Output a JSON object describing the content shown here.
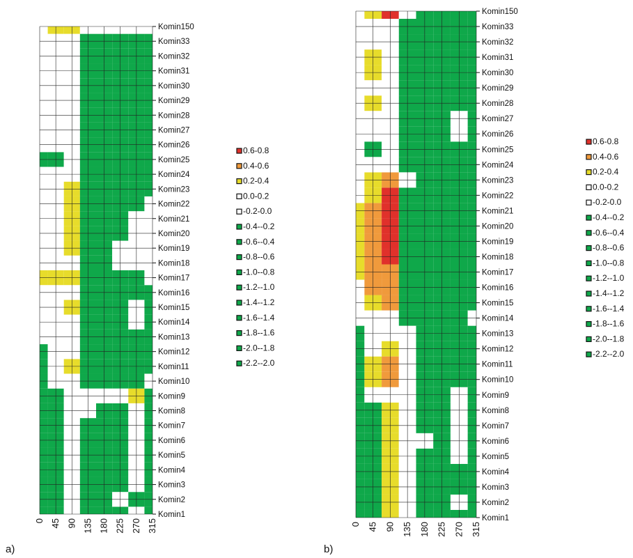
{
  "colors": {
    "green": "#0fa84a",
    "yellow": "#e7dc2b",
    "orange": "#f09a3c",
    "red": "#e0312b",
    "white": "#ffffff",
    "grid": "#222222",
    "contour": "#444444"
  },
  "chart_data": [
    {
      "type": "heatmap",
      "panel_label": "a)",
      "title": "",
      "xlabel": "",
      "ylabel": "",
      "x": [
        0,
        45,
        90,
        135,
        180,
        225,
        270,
        315
      ],
      "xlim": [
        0,
        315
      ],
      "y_categories": [
        "Komin1",
        "Komin2",
        "Komin3",
        "Komin4",
        "Komin5",
        "Komin6",
        "Komin7",
        "Komin8",
        "Komin9",
        "Komin10",
        "Komin11",
        "Komin12",
        "Komin13",
        "Komin14",
        "Komin15",
        "Komin16",
        "Komin17",
        "Komin18",
        "Komin19",
        "Komin20",
        "Komin21",
        "Komin22",
        "Komin23",
        "Komin24",
        "Komin25",
        "Komin26",
        "Komin27",
        "Komin28",
        "Komin29",
        "Komin30",
        "Komin31",
        "Komin32",
        "Komin33",
        "Komin150"
      ],
      "legend_position": "right",
      "legend": [
        "0.6-0.8",
        "0.4-0.6",
        "0.2-0.4",
        "0.0-0.2",
        "-0.2-0.0",
        "-0.4--0.2",
        "-0.6--0.4",
        "-0.8--0.6",
        "-1.0--0.8",
        "-1.2--1.0",
        "-1.4--1.2",
        "-1.6--1.4",
        "-1.8--1.6",
        "-2.0--1.8",
        "-2.2--2.0"
      ],
      "legend_colors": [
        "#e0312b",
        "#f09a3c",
        "#e7dc2b",
        "#ffffff",
        "#ffffff",
        "#0fa84a",
        "#0fa84a",
        "#0fa84a",
        "#0fa84a",
        "#0fa84a",
        "#0fa84a",
        "#0fa84a",
        "#0fa84a",
        "#0fa84a",
        "#0fa84a"
      ],
      "values": [
        [
          -1.5,
          -1.5,
          0.0,
          -1.2,
          -1.5,
          -1.5,
          0.0,
          -1.5
        ],
        [
          -1.5,
          -1.5,
          0.0,
          -1.2,
          -1.5,
          0.0,
          -0.3,
          -1.5
        ],
        [
          -1.5,
          -1.5,
          0.1,
          -1.2,
          -1.5,
          -1.0,
          0.0,
          -1.5
        ],
        [
          -1.5,
          -1.5,
          0.0,
          -1.2,
          -1.5,
          -1.0,
          0.0,
          -1.5
        ],
        [
          -1.5,
          -1.5,
          0.0,
          -1.2,
          -1.5,
          -1.0,
          0.0,
          -1.5
        ],
        [
          -1.5,
          -1.5,
          0.0,
          -1.2,
          -1.5,
          -1.0,
          0.0,
          -1.5
        ],
        [
          -1.5,
          -1.5,
          0.0,
          -1.2,
          -1.5,
          -1.0,
          0.0,
          -1.5
        ],
        [
          -1.5,
          -1.5,
          0.0,
          0.0,
          -1.5,
          -1.0,
          0.0,
          -1.5
        ],
        [
          -1.5,
          -1.5,
          0.0,
          0.0,
          0.0,
          0.0,
          0.3,
          -1.5
        ],
        [
          -1.0,
          0.0,
          0.0,
          -1.2,
          -1.2,
          -1.2,
          -1.2,
          0.0
        ],
        [
          -1.0,
          0.0,
          0.3,
          -1.2,
          -1.2,
          -1.2,
          -1.2,
          -1.2
        ],
        [
          -1.0,
          0.0,
          0.0,
          -1.2,
          -1.2,
          -1.2,
          -1.2,
          -1.2
        ],
        [
          0.0,
          0.0,
          0.0,
          -1.2,
          -1.2,
          -1.2,
          -1.2,
          -1.2
        ],
        [
          0.0,
          0.0,
          0.0,
          -1.2,
          -1.2,
          -1.2,
          0.0,
          -1.2
        ],
        [
          0.0,
          0.0,
          0.3,
          -1.2,
          -1.2,
          -1.2,
          0.0,
          -1.2
        ],
        [
          0.0,
          0.0,
          0.0,
          -1.2,
          -1.2,
          -1.2,
          -1.2,
          -1.2
        ],
        [
          0.3,
          0.3,
          0.3,
          -1.2,
          -1.2,
          -1.2,
          -1.2,
          0.0
        ],
        [
          0.0,
          0.0,
          0.0,
          -1.2,
          -1.2,
          0.0,
          0.0,
          0.0
        ],
        [
          0.0,
          0.0,
          0.3,
          -1.2,
          -1.2,
          0.0,
          0.0,
          0.0
        ],
        [
          0.0,
          0.0,
          0.3,
          -1.2,
          -1.2,
          -1.2,
          0.0,
          0.0
        ],
        [
          0.0,
          0.0,
          0.3,
          -1.2,
          -1.2,
          -1.2,
          0.0,
          0.0
        ],
        [
          0.0,
          0.0,
          0.3,
          -1.2,
          -1.2,
          -1.2,
          -1.2,
          0.0
        ],
        [
          0.0,
          0.0,
          0.3,
          -1.2,
          -1.2,
          -1.2,
          -1.2,
          -1.2
        ],
        [
          0.0,
          0.0,
          0.0,
          -1.2,
          -1.2,
          -1.2,
          -1.2,
          -1.2
        ],
        [
          -0.6,
          -0.6,
          0.0,
          -1.2,
          -1.2,
          -1.2,
          -1.2,
          -1.2
        ],
        [
          0.0,
          0.0,
          0.0,
          -1.2,
          -1.2,
          -1.2,
          -1.2,
          -1.2
        ],
        [
          0.0,
          0.0,
          0.0,
          -1.2,
          -1.2,
          -1.2,
          -1.2,
          -1.2
        ],
        [
          0.0,
          0.0,
          0.0,
          -1.2,
          -1.2,
          -1.2,
          -1.2,
          -1.2
        ],
        [
          0.0,
          0.0,
          0.0,
          -1.2,
          -1.2,
          -1.2,
          -1.2,
          -1.2
        ],
        [
          0.0,
          0.0,
          0.0,
          -1.2,
          -1.2,
          -1.2,
          -1.2,
          -1.2
        ],
        [
          0.0,
          0.0,
          0.0,
          -1.2,
          -1.2,
          -1.2,
          -1.2,
          -1.2
        ],
        [
          0.0,
          0.0,
          0.0,
          -1.2,
          -1.2,
          -1.2,
          -1.2,
          -1.2
        ],
        [
          0.0,
          0.0,
          0.0,
          -1.2,
          -1.2,
          -1.2,
          -1.2,
          -1.2
        ],
        [
          0.0,
          0.3,
          0.3,
          0.0,
          0.0,
          0.0,
          0.0,
          0.0
        ]
      ]
    },
    {
      "type": "heatmap",
      "panel_label": "b)",
      "title": "",
      "xlabel": "",
      "ylabel": "",
      "x": [
        0,
        45,
        90,
        135,
        180,
        225,
        270,
        315
      ],
      "xlim": [
        0,
        315
      ],
      "y_categories": [
        "Komin1",
        "Komin2",
        "Komin3",
        "Komin4",
        "Komin5",
        "Komin6",
        "Komin7",
        "Komin8",
        "Komin9",
        "Komin10",
        "Komin11",
        "Komin12",
        "Komin13",
        "Komin14",
        "Komin15",
        "Komin16",
        "Komin17",
        "Komin18",
        "Komin19",
        "Komin20",
        "Komin21",
        "Komin22",
        "Komin23",
        "Komin24",
        "Komin25",
        "Komin26",
        "Komin27",
        "Komin28",
        "Komin29",
        "Komin30",
        "Komin31",
        "Komin32",
        "Komin33",
        "Komin150"
      ],
      "legend_position": "right",
      "legend": [
        "0.6-0.8",
        "0.4-0.6",
        "0.2-0.4",
        "0.0-0.2",
        "-0.2-0.0",
        "-0.4--0.2",
        "-0.6--0.4",
        "-0.8--0.6",
        "-1.0--0.8",
        "-1.2--1.0",
        "-1.4--1.2",
        "-1.6--1.4",
        "-1.8--1.6",
        "-2.0--1.8",
        "-2.2--2.0"
      ],
      "legend_colors": [
        "#e0312b",
        "#f09a3c",
        "#e7dc2b",
        "#ffffff",
        "#ffffff",
        "#0fa84a",
        "#0fa84a",
        "#0fa84a",
        "#0fa84a",
        "#0fa84a",
        "#0fa84a",
        "#0fa84a",
        "#0fa84a",
        "#0fa84a",
        "#0fa84a"
      ],
      "values": [
        [
          -1.5,
          -1.5,
          0.3,
          0.0,
          -1.5,
          -1.5,
          -1.5,
          -1.5
        ],
        [
          -1.5,
          -1.5,
          0.3,
          0.0,
          -1.5,
          -1.5,
          0.0,
          -1.5
        ],
        [
          -1.5,
          -1.5,
          0.3,
          0.0,
          -1.5,
          -1.5,
          -1.5,
          -1.5
        ],
        [
          -1.5,
          -1.5,
          0.3,
          0.0,
          -1.5,
          -1.5,
          -1.5,
          -1.5
        ],
        [
          -1.5,
          -1.5,
          0.3,
          0.0,
          -1.5,
          -1.5,
          0.0,
          -1.5
        ],
        [
          -1.5,
          -1.5,
          0.3,
          0.0,
          0.0,
          -1.5,
          0.0,
          -1.5
        ],
        [
          -1.5,
          -1.5,
          0.3,
          0.0,
          -1.5,
          -1.5,
          0.0,
          -1.5
        ],
        [
          -1.5,
          -1.5,
          0.3,
          0.0,
          -1.5,
          -1.5,
          0.0,
          -1.5
        ],
        [
          -1.5,
          0.0,
          0.0,
          0.0,
          -1.5,
          -1.5,
          0.0,
          -1.5
        ],
        [
          -1.5,
          0.3,
          0.5,
          0.0,
          -1.5,
          -1.5,
          -1.5,
          -1.5
        ],
        [
          -1.5,
          0.3,
          0.5,
          0.0,
          -1.5,
          -1.5,
          -1.5,
          -1.5
        ],
        [
          -1.5,
          0.0,
          0.3,
          0.0,
          -1.5,
          -1.5,
          -1.5,
          -1.5
        ],
        [
          -1.5,
          0.0,
          0.0,
          0.0,
          -1.5,
          -1.5,
          -1.5,
          -1.5
        ],
        [
          0.0,
          0.0,
          0.0,
          -1.5,
          -1.5,
          -1.5,
          -1.5,
          0.0
        ],
        [
          0.0,
          0.3,
          0.5,
          -1.5,
          -1.5,
          -1.5,
          -1.5,
          -1.5
        ],
        [
          0.0,
          0.5,
          0.5,
          -1.5,
          -1.5,
          -1.5,
          -1.5,
          -1.5
        ],
        [
          0.3,
          0.5,
          0.5,
          -1.5,
          -1.5,
          -1.5,
          -1.5,
          -1.5
        ],
        [
          0.3,
          0.5,
          0.7,
          -1.5,
          -1.5,
          -1.5,
          -1.5,
          -1.5
        ],
        [
          0.3,
          0.5,
          0.7,
          -1.5,
          -1.5,
          -1.5,
          -1.5,
          -1.5
        ],
        [
          0.3,
          0.5,
          0.7,
          -1.5,
          -1.5,
          -1.5,
          -1.5,
          -1.5
        ],
        [
          0.3,
          0.5,
          0.7,
          -1.5,
          -1.5,
          -1.5,
          -1.5,
          -1.5
        ],
        [
          0.0,
          0.3,
          0.7,
          -1.5,
          -1.5,
          -1.5,
          -1.5,
          -1.5
        ],
        [
          0.0,
          0.3,
          0.5,
          0.0,
          -1.5,
          -1.5,
          -1.5,
          -1.5
        ],
        [
          0.0,
          0.0,
          0.0,
          -1.5,
          -1.5,
          -1.5,
          -1.5,
          -1.5
        ],
        [
          0.0,
          -0.6,
          0.0,
          -1.5,
          -1.5,
          -1.5,
          -1.5,
          -1.5
        ],
        [
          0.0,
          0.0,
          0.0,
          -1.5,
          -1.5,
          -1.5,
          0.0,
          -1.5
        ],
        [
          0.0,
          0.0,
          0.0,
          -1.5,
          -1.5,
          -1.5,
          0.0,
          -1.5
        ],
        [
          0.0,
          0.3,
          0.0,
          -1.5,
          -1.5,
          -1.5,
          -1.5,
          -1.5
        ],
        [
          0.0,
          0.0,
          0.0,
          -1.5,
          -1.5,
          -1.5,
          -1.5,
          -1.5
        ],
        [
          0.0,
          0.3,
          0.0,
          -1.5,
          -1.5,
          -1.5,
          -1.5,
          -1.5
        ],
        [
          0.0,
          0.3,
          0.0,
          -1.5,
          -1.5,
          -1.5,
          -1.5,
          -1.5
        ],
        [
          0.0,
          0.0,
          0.0,
          -1.5,
          -1.5,
          -1.5,
          -1.5,
          -1.5
        ],
        [
          0.0,
          0.0,
          0.0,
          -1.5,
          -1.5,
          -1.5,
          -1.5,
          -1.5
        ],
        [
          0.0,
          0.3,
          0.7,
          0.0,
          -1.5,
          -1.5,
          -1.5,
          -1.5
        ]
      ]
    }
  ]
}
